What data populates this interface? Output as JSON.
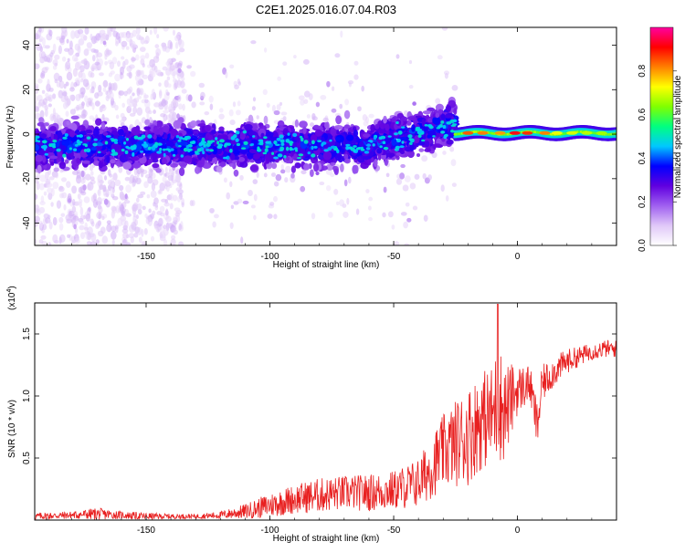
{
  "figure": {
    "title": "C2E1.2025.016.07.04.R03"
  },
  "chart_data": [
    {
      "type": "heatmap",
      "name": "spectrogram",
      "xlabel": "Height of straight line (km)",
      "ylabel": "Frequency (Hz)",
      "xlim": [
        -195,
        40
      ],
      "ylim": [
        -50,
        48
      ],
      "xticks": [
        -150,
        -100,
        -50,
        0
      ],
      "yticks": [
        -40,
        -20,
        0,
        20,
        40
      ],
      "grid": false,
      "description_of_signal": [
        {
          "x_range": [
            -195,
            -25
          ],
          "center_freq": -5,
          "spread_hz": 12,
          "note": "broad noisy band, mostly purple/blue with cyan speckles"
        },
        {
          "x_range": [
            -60,
            -25
          ],
          "center_freq_start": -2,
          "center_freq_end": 6,
          "note": "band rising toward positive frequency"
        },
        {
          "x_range": [
            -25,
            40
          ],
          "center_freq": 0,
          "spread_hz": 3,
          "note": "narrow strong carrier, yellow/red peaks"
        }
      ],
      "colorbar": {
        "label": "Normalized spectral amplitude",
        "min": 0.0,
        "max": 1.0,
        "ticks": [
          "0.0",
          "0.2",
          "0.4",
          "0.6",
          "0.8"
        ],
        "colormap": [
          "#ffffff",
          "#e0c8f8",
          "#a060f0",
          "#6000e0",
          "#0000ff",
          "#00c8ff",
          "#00ff80",
          "#80ff00",
          "#ffff00",
          "#ff8000",
          "#ff0000",
          "#ff00a0"
        ]
      }
    },
    {
      "type": "line",
      "name": "snr",
      "xlabel": "Height of straight line (km)",
      "ylabel": "SNR (10 * v/v)",
      "scale_label_base": "(x10",
      "scale_label_exp": "4",
      "scale_label_close": ")",
      "xlim": [
        -195,
        40
      ],
      "ylim": [
        0,
        1.75
      ],
      "xticks": [
        -150,
        -100,
        -50,
        0
      ],
      "yticks": [
        "0.5",
        "1.0",
        "1.5"
      ],
      "ytick_values": [
        0.5,
        1.0,
        1.5
      ],
      "line_color": "#e82020",
      "envelope": {
        "x": [
          -195,
          -180,
          -170,
          -160,
          -150,
          -140,
          -130,
          -120,
          -110,
          -100,
          -90,
          -80,
          -70,
          -60,
          -50,
          -40,
          -35,
          -30,
          -25,
          -20,
          -15,
          -10,
          -8,
          -5,
          0,
          5,
          8,
          10,
          15,
          20,
          25,
          30,
          35,
          40
        ],
        "mean": [
          0.03,
          0.04,
          0.05,
          0.04,
          0.03,
          0.03,
          0.03,
          0.04,
          0.07,
          0.12,
          0.17,
          0.2,
          0.22,
          0.22,
          0.24,
          0.3,
          0.42,
          0.55,
          0.62,
          0.68,
          0.8,
          0.85,
          0.95,
          0.88,
          1.05,
          1.1,
          0.75,
          1.1,
          1.2,
          1.28,
          1.32,
          1.36,
          1.38,
          1.38
        ],
        "amp": [
          0.03,
          0.03,
          0.05,
          0.03,
          0.03,
          0.02,
          0.02,
          0.03,
          0.06,
          0.1,
          0.12,
          0.14,
          0.14,
          0.15,
          0.16,
          0.2,
          0.25,
          0.3,
          0.35,
          0.4,
          0.4,
          0.4,
          0.5,
          0.4,
          0.2,
          0.15,
          0.2,
          0.15,
          0.12,
          0.1,
          0.08,
          0.07,
          0.07,
          0.07
        ]
      }
    }
  ]
}
